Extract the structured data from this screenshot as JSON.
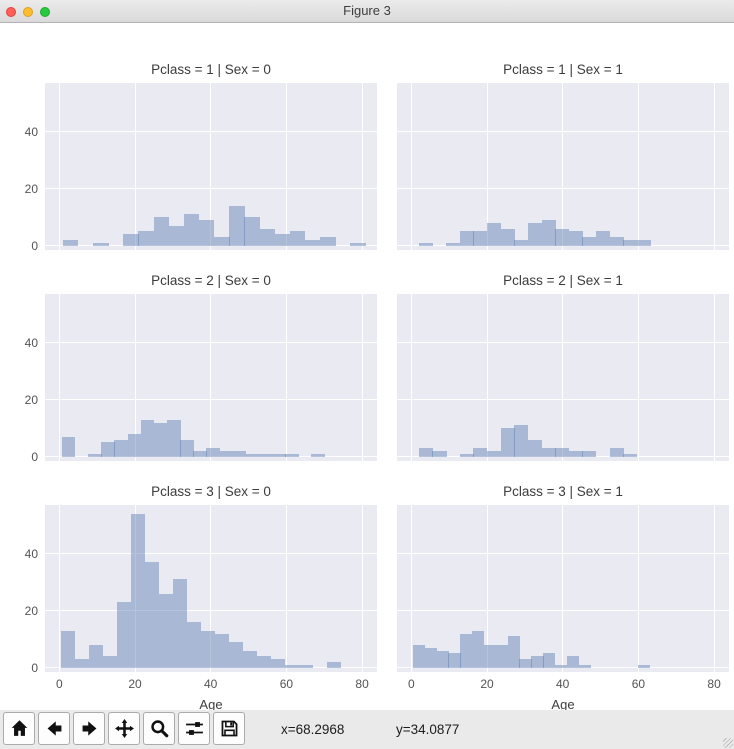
{
  "window": {
    "title": "Figure 3"
  },
  "style": {
    "plot_bg": "#eaeaf2",
    "grid_color": "#ffffff",
    "bar_color": "rgba(92,124,176,0.45)",
    "bar_color_hex_approx": "#a9bbd6",
    "title_color": "#3c3c3c",
    "tick_color": "#545454"
  },
  "shared_axes": {
    "xlabel": "Age",
    "x_ticks": [
      0,
      20,
      40,
      60,
      80
    ],
    "y_ticks": [
      0,
      20,
      40
    ],
    "xlim": [
      -3.8,
      84
    ],
    "ylim": [
      -1.5,
      57.1
    ],
    "grid": true,
    "legend": "none"
  },
  "chart_data": [
    {
      "type": "bar",
      "subtype": "histogram",
      "title": "Pclass = 1 | Sex = 0",
      "row": 0,
      "col": 0,
      "xlabel": "Age",
      "bin_start": 0.9,
      "bin_width": 4.0,
      "counts": [
        2,
        0,
        1,
        0,
        4,
        5,
        10,
        7,
        11,
        9,
        3,
        14,
        10,
        6,
        4,
        5,
        2,
        3,
        0,
        1
      ]
    },
    {
      "type": "bar",
      "subtype": "histogram",
      "title": "Pclass = 1 | Sex = 1",
      "row": 0,
      "col": 1,
      "xlabel": "Age",
      "bin_start": 2.0,
      "bin_width": 3.6,
      "counts": [
        1,
        0,
        1,
        5,
        5,
        8,
        6,
        2,
        8,
        9,
        6,
        5,
        3,
        5,
        3,
        2,
        2
      ]
    },
    {
      "type": "bar",
      "subtype": "histogram",
      "title": "Pclass = 2 | Sex = 0",
      "row": 1,
      "col": 0,
      "xlabel": "Age",
      "bin_start": 0.7,
      "bin_width": 3.47,
      "counts": [
        7,
        0,
        1,
        5,
        6,
        8,
        13,
        12,
        13,
        6,
        2,
        3,
        2,
        2,
        1,
        1,
        1,
        1,
        0,
        1
      ]
    },
    {
      "type": "bar",
      "subtype": "histogram",
      "title": "Pclass = 2 | Sex = 1",
      "row": 1,
      "col": 1,
      "xlabel": "Age",
      "bin_start": 2.0,
      "bin_width": 3.6,
      "counts": [
        3,
        2,
        0,
        1,
        3,
        2,
        10,
        11,
        6,
        3,
        3,
        2,
        2,
        0,
        3,
        1
      ]
    },
    {
      "type": "bar",
      "subtype": "histogram",
      "title": "Pclass = 3 | Sex = 0",
      "row": 2,
      "col": 0,
      "xlabel": "Age",
      "bin_start": 0.4,
      "bin_width": 3.7,
      "counts": [
        13,
        3,
        8,
        4,
        23,
        54,
        37,
        26,
        31,
        16,
        13,
        12,
        9,
        6,
        4,
        3,
        1,
        1,
        0,
        2
      ]
    },
    {
      "type": "bar",
      "subtype": "histogram",
      "title": "Pclass = 3 | Sex = 1",
      "row": 2,
      "col": 1,
      "xlabel": "Age",
      "bin_start": 0.4,
      "bin_width": 3.13,
      "counts": [
        8,
        7,
        6,
        5,
        12,
        13,
        8,
        8,
        11,
        3,
        4,
        5,
        1,
        4,
        1,
        0,
        0,
        0,
        0,
        1
      ]
    }
  ],
  "toolbar": {
    "buttons": [
      {
        "icon": "home-icon"
      },
      {
        "icon": "back-arrow-icon"
      },
      {
        "icon": "forward-arrow-icon"
      },
      {
        "icon": "pan-icon"
      },
      {
        "icon": "zoom-icon"
      },
      {
        "icon": "configure-subplots-icon"
      },
      {
        "icon": "save-icon"
      }
    ],
    "coord_x": "x=68.2968",
    "coord_y": "y=34.0877"
  }
}
